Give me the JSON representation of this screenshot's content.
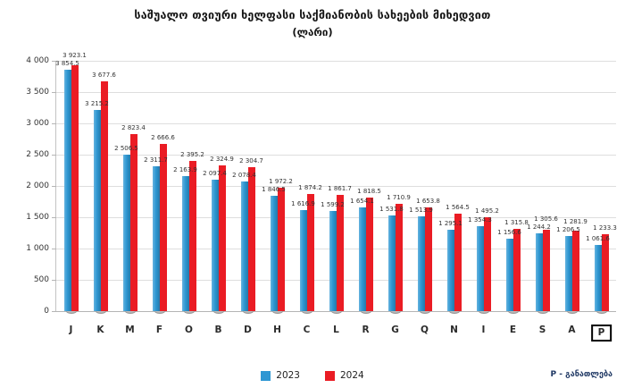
{
  "title": "საშუალო თვიური ხელფასი საქმიანობის სახეების მიხედვით",
  "subtitle": "(ლარი)",
  "footnote": "P - განათლება",
  "legend": [
    {
      "label": "2023",
      "color": "#2e97d3"
    },
    {
      "label": "2024",
      "color": "#ea1c24"
    }
  ],
  "chart_data": {
    "type": "bar",
    "title": "საშუალო თვიური ხელფასი საქმიანობის სახეების მიხედვით (ლარი)",
    "categories": [
      "J",
      "K",
      "M",
      "F",
      "O",
      "B",
      "D",
      "H",
      "C",
      "L",
      "R",
      "G",
      "Q",
      "N",
      "I",
      "E",
      "S",
      "A",
      "P"
    ],
    "series": [
      {
        "name": "2023",
        "color": "#2e97d3",
        "values": [
          3854.5,
          3215.2,
          2506.5,
          2311.7,
          2163.9,
          2097.4,
          2078.4,
          1846.5,
          1616.9,
          1599.2,
          1654.1,
          1531.8,
          1513.9,
          1295.1,
          1354.3,
          1156.6,
          1244.2,
          1206.5,
          1061.6
        ]
      },
      {
        "name": "2024",
        "color": "#ea1c24",
        "values": [
          3923.1,
          3677.6,
          2823.4,
          2666.6,
          2395.2,
          2324.9,
          2304.7,
          1972.2,
          1874.2,
          1861.7,
          1818.5,
          1710.9,
          1653.8,
          1564.5,
          1495.2,
          1315.8,
          1305.6,
          1281.9,
          1233.3
        ]
      }
    ],
    "xlabel": "",
    "ylabel": "",
    "ylim": [
      0,
      4000
    ],
    "yticks": [
      0,
      500,
      1000,
      1500,
      2000,
      2500,
      3000,
      3500,
      4000
    ],
    "grid": true,
    "legend_position": "bottom",
    "highlighted_category": "P",
    "value_label_decimals": 1,
    "thousands_separator": " "
  }
}
